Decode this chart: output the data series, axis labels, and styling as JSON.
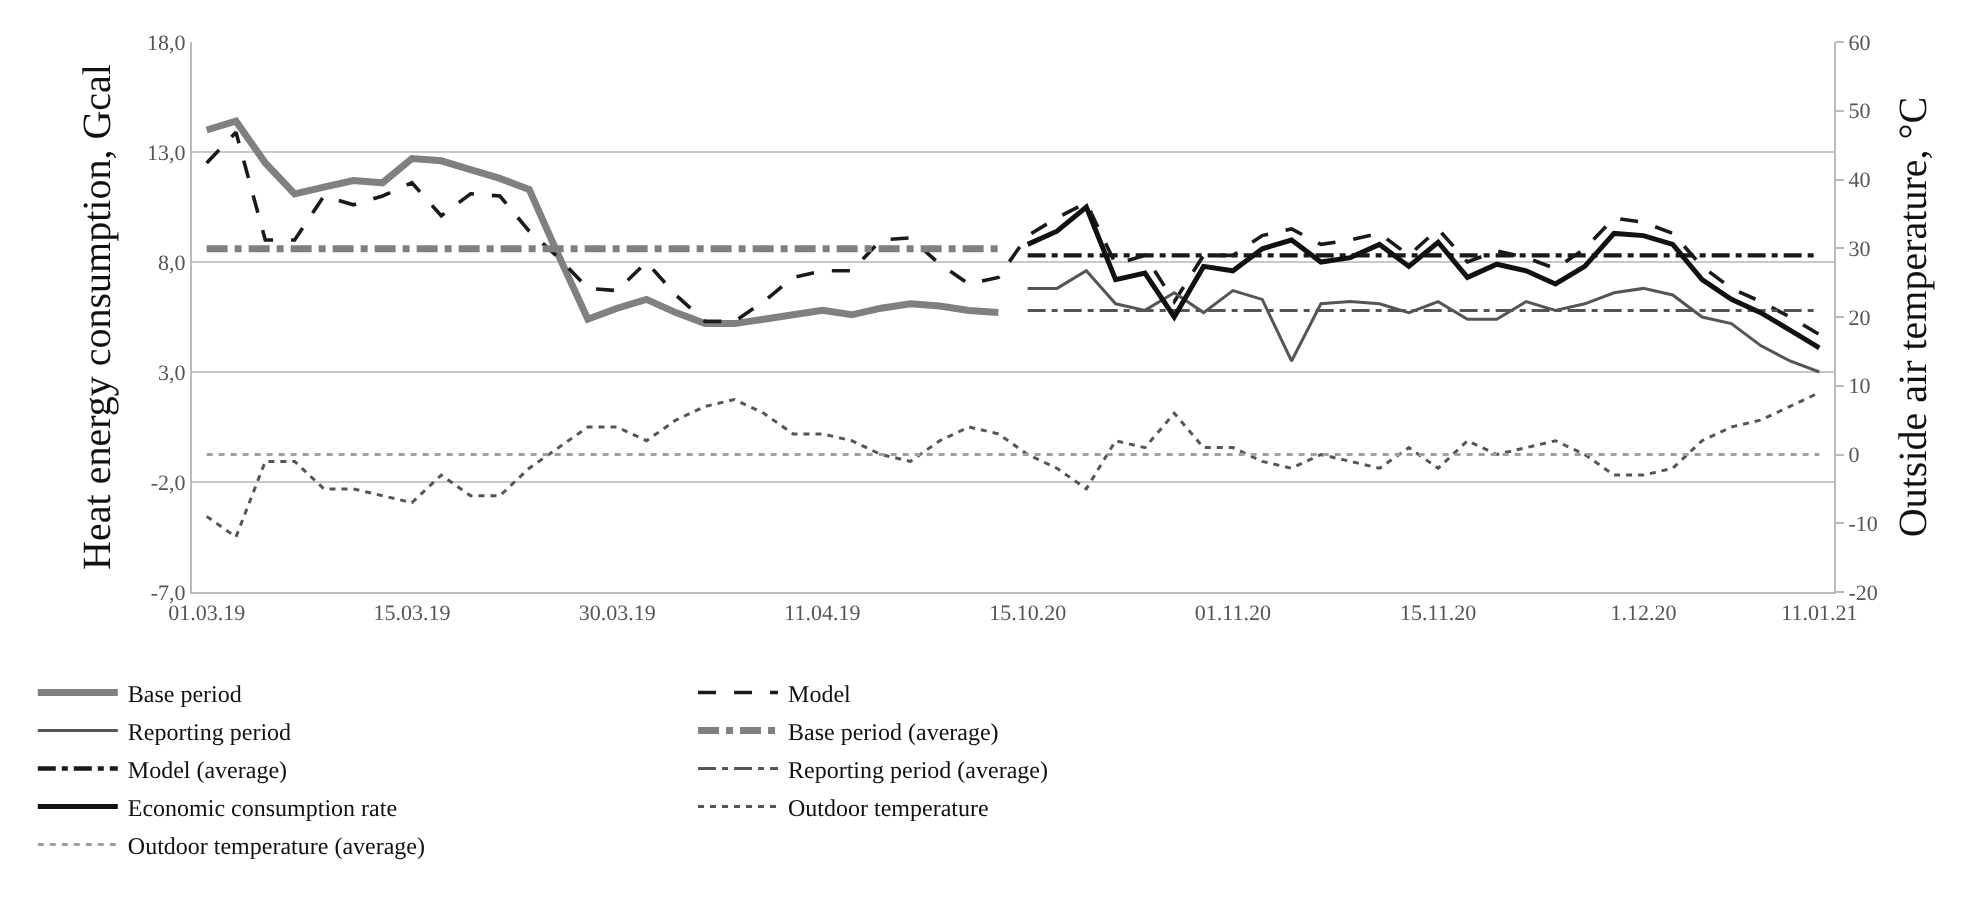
{
  "chart_data": {
    "type": "line",
    "ylabel": "Heat energy consumption, Gcal",
    "y2label": "Outside air temperature, °C",
    "categories": [
      "01.03.19",
      null,
      null,
      null,
      null,
      null,
      null,
      "15.03.19",
      null,
      null,
      null,
      null,
      null,
      null,
      "30.03.19",
      null,
      null,
      null,
      null,
      null,
      null,
      "11.04.19",
      null,
      null,
      null,
      null,
      null,
      null,
      "15.10.20",
      null,
      null,
      null,
      null,
      null,
      null,
      "01.11.20",
      null,
      null,
      null,
      null,
      null,
      null,
      "15.11.20",
      null,
      null,
      null,
      null,
      null,
      null,
      "1.12.20",
      null,
      null,
      null,
      null,
      null,
      "11.01.21"
    ],
    "series": [
      {
        "name": "Base period",
        "color": "#808080",
        "line_style": "solid",
        "values": [
          14.0,
          14.4,
          12.5,
          11.1,
          11.4,
          11.7,
          11.6,
          12.7,
          12.6,
          12.2,
          11.8,
          11.3,
          8.3,
          5.4,
          5.9,
          6.3,
          5.7,
          5.2,
          5.2,
          5.4,
          5.6,
          5.8,
          5.6,
          5.9,
          6.1,
          6.0,
          5.8,
          5.7,
          null,
          null,
          null,
          null,
          null,
          null,
          null,
          null,
          null,
          null,
          null,
          null,
          null,
          null,
          null,
          null,
          null,
          null,
          null,
          null,
          null,
          null,
          null,
          null,
          null,
          null,
          null,
          null
        ]
      },
      {
        "name": "Model",
        "color": "#1a1a1a",
        "line_style": "dashed",
        "values": [
          12.5,
          13.9,
          9.0,
          9.0,
          11.0,
          10.6,
          11.0,
          11.6,
          10.1,
          11.1,
          11.0,
          9.4,
          8.2,
          6.8,
          6.7,
          8.0,
          6.5,
          5.3,
          5.3,
          6.2,
          7.3,
          7.6,
          7.6,
          9.0,
          9.1,
          7.9,
          7.0,
          7.3,
          9.2,
          10.0,
          10.7,
          7.9,
          8.3,
          6.2,
          8.3,
          8.3,
          9.2,
          9.5,
          8.8,
          9.0,
          9.3,
          8.3,
          9.5,
          8.0,
          8.5,
          8.2,
          7.7,
          8.6,
          10.0,
          9.8,
          9.3,
          7.8,
          6.8,
          6.2,
          5.5,
          4.7
        ]
      },
      {
        "name": "Reporting period",
        "color": "#555555",
        "line_style": "solid",
        "values": [
          null,
          null,
          null,
          null,
          null,
          null,
          null,
          null,
          null,
          null,
          null,
          null,
          null,
          null,
          null,
          null,
          null,
          null,
          null,
          null,
          null,
          null,
          null,
          null,
          null,
          null,
          null,
          null,
          6.8,
          6.8,
          7.6,
          6.1,
          5.8,
          6.6,
          5.7,
          6.7,
          6.3,
          3.5,
          6.1,
          6.2,
          6.1,
          5.7,
          6.2,
          5.4,
          5.4,
          6.2,
          5.8,
          6.1,
          6.6,
          6.8,
          6.5,
          5.5,
          5.2,
          4.2,
          3.5,
          3.0
        ]
      },
      {
        "name": "Base period (average)",
        "color": "#808080",
        "line_style": "dashdot",
        "values": [
          8.6,
          8.6,
          8.6,
          8.6,
          8.6,
          8.6,
          8.6,
          8.6,
          8.6,
          8.6,
          8.6,
          8.6,
          8.6,
          8.6,
          8.6,
          8.6,
          8.6,
          8.6,
          8.6,
          8.6,
          8.6,
          8.6,
          8.6,
          8.6,
          8.6,
          8.6,
          8.6,
          8.6,
          null,
          null,
          null,
          null,
          null,
          null,
          null,
          null,
          null,
          null,
          null,
          null,
          null,
          null,
          null,
          null,
          null,
          null,
          null,
          null,
          null,
          null,
          null,
          null,
          null,
          null,
          null,
          null
        ]
      },
      {
        "name": "Model (average)",
        "color": "#1a1a1a",
        "line_style": "dashdot",
        "values": [
          null,
          null,
          null,
          null,
          null,
          null,
          null,
          null,
          null,
          null,
          null,
          null,
          null,
          null,
          null,
          null,
          null,
          null,
          null,
          null,
          null,
          null,
          null,
          null,
          null,
          null,
          null,
          null,
          8.3,
          8.3,
          8.3,
          8.3,
          8.3,
          8.3,
          8.3,
          8.3,
          8.3,
          8.3,
          8.3,
          8.3,
          8.3,
          8.3,
          8.3,
          8.3,
          8.3,
          8.3,
          8.3,
          8.3,
          8.3,
          8.3,
          8.3,
          8.3,
          8.3,
          8.3,
          8.3,
          8.3
        ]
      },
      {
        "name": "Reporting period (average)",
        "color": "#555555",
        "line_style": "dashdot",
        "values": [
          null,
          null,
          null,
          null,
          null,
          null,
          null,
          null,
          null,
          null,
          null,
          null,
          null,
          null,
          null,
          null,
          null,
          null,
          null,
          null,
          null,
          null,
          null,
          null,
          null,
          null,
          null,
          null,
          5.8,
          5.8,
          5.8,
          5.8,
          5.8,
          5.8,
          5.8,
          5.8,
          5.8,
          5.8,
          5.8,
          5.8,
          5.8,
          5.8,
          5.8,
          5.8,
          5.8,
          5.8,
          5.8,
          5.8,
          5.8,
          5.8,
          5.8,
          5.8,
          5.8,
          5.8,
          5.8,
          5.8
        ]
      },
      {
        "name": "Economic consumption rate",
        "color": "#111111",
        "line_style": "solid",
        "values": [
          null,
          null,
          null,
          null,
          null,
          null,
          null,
          null,
          null,
          null,
          null,
          null,
          null,
          null,
          null,
          null,
          null,
          null,
          null,
          null,
          null,
          null,
          null,
          null,
          null,
          null,
          null,
          null,
          8.8,
          9.4,
          10.5,
          7.2,
          7.5,
          5.5,
          7.8,
          7.6,
          8.6,
          9.0,
          8.0,
          8.2,
          8.8,
          7.8,
          8.9,
          7.3,
          7.9,
          7.6,
          7.0,
          7.8,
          9.3,
          9.2,
          8.8,
          7.2,
          6.3,
          5.7,
          4.9,
          4.1
        ]
      },
      {
        "name": "Outdoor temperature",
        "color": "#555555",
        "line_style": "dotted",
        "axis": "y2",
        "values": [
          -9,
          -12,
          -1,
          -1,
          -5,
          -5,
          -6,
          -7,
          -3,
          -6,
          -6,
          -2,
          1,
          4,
          4,
          2,
          5,
          7,
          8,
          6,
          3,
          3,
          2,
          0,
          -1,
          2,
          4,
          3,
          0,
          -2,
          -5,
          2,
          1,
          6,
          1,
          1,
          -1,
          -2,
          0,
          -1,
          -2,
          1,
          -2,
          2,
          0,
          1,
          2,
          0,
          -3,
          -3,
          -2,
          2,
          4,
          5,
          7,
          9
        ]
      },
      {
        "name": "Outdoor temperature (average)",
        "color": "#a0a0a0",
        "line_style": "dotted",
        "axis": "y2",
        "values": [
          0,
          0,
          0,
          0,
          0,
          0,
          0,
          0,
          0,
          0,
          0,
          0,
          0,
          0,
          0,
          0,
          0,
          0,
          0,
          0,
          0,
          0,
          0,
          0,
          0,
          0,
          0,
          0,
          0,
          0,
          0,
          0,
          0,
          0,
          0,
          0,
          0,
          0,
          0,
          0,
          0,
          0,
          0,
          0,
          0,
          0,
          0,
          0,
          0,
          0,
          0,
          0,
          0,
          0,
          0,
          0
        ]
      }
    ],
    "ylim": [
      -7,
      18
    ],
    "yticks": [
      {
        "value": -7,
        "label": "-7,0"
      },
      {
        "value": -2,
        "label": "-2,0"
      },
      {
        "value": 3,
        "label": "3,0"
      },
      {
        "value": 8,
        "label": "8,0"
      },
      {
        "value": 13,
        "label": "13,0"
      },
      {
        "value": 18,
        "label": "18,0"
      }
    ],
    "y2lim": [
      -20,
      60
    ],
    "y2ticks": [
      -20,
      -10,
      0,
      10,
      20,
      30,
      40,
      50,
      60
    ],
    "grid": "y",
    "legend": "bottom"
  }
}
